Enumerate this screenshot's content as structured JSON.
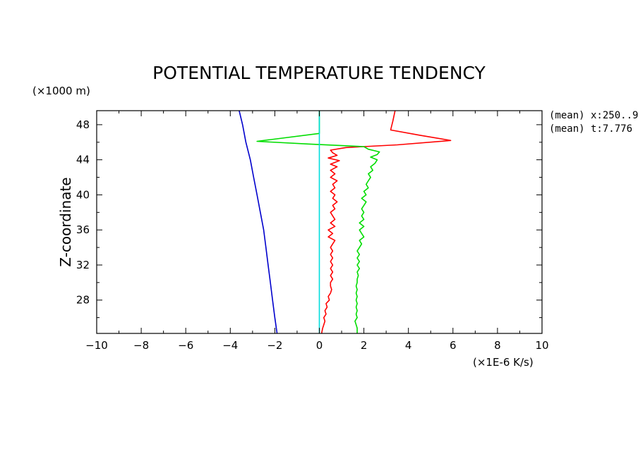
{
  "chart_data": {
    "type": "line",
    "title": "POTENTIAL TEMPERATURE TENDENCY",
    "ylabel": "Z-coordinate",
    "yunit": "(×1000 m)",
    "xunit": "(×1E-6 K/s)",
    "xlim": [
      -10,
      10
    ],
    "ylim": [
      24.2,
      49.6
    ],
    "xticks": [
      -10,
      -8,
      -6,
      -4,
      -2,
      0,
      2,
      4,
      6,
      8,
      10
    ],
    "xtick_labels": [
      "−10",
      "−8",
      "−6",
      "−4",
      "−2",
      "0",
      "2",
      "4",
      "6",
      "8",
      "10"
    ],
    "yticks": [
      28,
      32,
      36,
      40,
      44,
      48
    ],
    "ytick_labels": [
      "28",
      "32",
      "36",
      "40",
      "44",
      "48"
    ],
    "grid": false,
    "annotations": [
      "(mean) x:250..9",
      "(mean) t:7.776"
    ],
    "series": [
      {
        "color": "#0000cc",
        "points": [
          [
            -3.6,
            49.6
          ],
          [
            -3.45,
            48
          ],
          [
            -3.3,
            46
          ],
          [
            -3.1,
            44
          ],
          [
            -2.95,
            42
          ],
          [
            -2.8,
            40
          ],
          [
            -2.65,
            38
          ],
          [
            -2.5,
            36
          ],
          [
            -2.4,
            34
          ],
          [
            -2.3,
            32
          ],
          [
            -2.2,
            30
          ],
          [
            -2.1,
            28
          ],
          [
            -2.0,
            26
          ],
          [
            -1.9,
            24.2
          ]
        ]
      },
      {
        "color": "#ff0000",
        "points": [
          [
            3.4,
            49.6
          ],
          [
            3.3,
            48.4
          ],
          [
            3.2,
            47.4
          ],
          [
            4.5,
            46.8
          ],
          [
            5.9,
            46.2
          ],
          [
            3.5,
            45.7
          ],
          [
            1.2,
            45.4
          ],
          [
            0.5,
            45.1
          ],
          [
            0.6,
            44.8
          ],
          [
            0.8,
            44.5
          ],
          [
            0.4,
            44.2
          ],
          [
            0.9,
            43.9
          ],
          [
            0.5,
            43.5
          ],
          [
            0.8,
            43.2
          ],
          [
            0.5,
            42.8
          ],
          [
            0.7,
            42.4
          ],
          [
            0.5,
            42.0
          ],
          [
            0.8,
            41.6
          ],
          [
            0.6,
            41.2
          ],
          [
            0.7,
            40.8
          ],
          [
            0.5,
            40.4
          ],
          [
            0.7,
            40.0
          ],
          [
            0.6,
            39.6
          ],
          [
            0.8,
            39.2
          ],
          [
            0.6,
            38.8
          ],
          [
            0.7,
            38.4
          ],
          [
            0.5,
            38.0
          ],
          [
            0.6,
            37.6
          ],
          [
            0.7,
            37.2
          ],
          [
            0.5,
            36.8
          ],
          [
            0.7,
            36.4
          ],
          [
            0.4,
            36.0
          ],
          [
            0.6,
            35.6
          ],
          [
            0.4,
            35.2
          ],
          [
            0.7,
            34.8
          ],
          [
            0.6,
            34.4
          ],
          [
            0.5,
            34.0
          ],
          [
            0.6,
            33.6
          ],
          [
            0.5,
            33.2
          ],
          [
            0.6,
            32.8
          ],
          [
            0.5,
            32.4
          ],
          [
            0.6,
            32.0
          ],
          [
            0.5,
            31.6
          ],
          [
            0.6,
            31.2
          ],
          [
            0.5,
            30.8
          ],
          [
            0.6,
            30.4
          ],
          [
            0.5,
            30.0
          ],
          [
            0.5,
            29.6
          ],
          [
            0.55,
            29.2
          ],
          [
            0.5,
            28.8
          ],
          [
            0.4,
            28.4
          ],
          [
            0.45,
            28.0
          ],
          [
            0.3,
            27.6
          ],
          [
            0.35,
            27.2
          ],
          [
            0.25,
            26.8
          ],
          [
            0.3,
            26.4
          ],
          [
            0.2,
            26.0
          ],
          [
            0.25,
            25.6
          ],
          [
            0.2,
            25.2
          ],
          [
            0.15,
            24.8
          ],
          [
            0.1,
            24.2
          ]
        ]
      },
      {
        "color": "#00dd00",
        "points": [
          [
            0.0,
            49.6
          ],
          [
            0.0,
            48.0
          ],
          [
            0.0,
            47.0
          ],
          [
            -2.8,
            46.1
          ],
          [
            -0.5,
            45.8
          ],
          [
            2.0,
            45.5
          ],
          [
            2.2,
            45.2
          ],
          [
            2.7,
            44.9
          ],
          [
            2.6,
            44.6
          ],
          [
            2.3,
            44.3
          ],
          [
            2.6,
            44.0
          ],
          [
            2.5,
            43.6
          ],
          [
            2.3,
            43.2
          ],
          [
            2.4,
            42.8
          ],
          [
            2.2,
            42.4
          ],
          [
            2.3,
            42.0
          ],
          [
            2.2,
            41.6
          ],
          [
            2.1,
            41.2
          ],
          [
            2.2,
            40.8
          ],
          [
            2.0,
            40.4
          ],
          [
            2.1,
            40.0
          ],
          [
            1.9,
            39.6
          ],
          [
            2.1,
            39.2
          ],
          [
            2.0,
            38.8
          ],
          [
            1.9,
            38.4
          ],
          [
            2.0,
            38.0
          ],
          [
            1.9,
            37.6
          ],
          [
            2.0,
            37.2
          ],
          [
            1.8,
            36.8
          ],
          [
            2.0,
            36.4
          ],
          [
            1.8,
            36.0
          ],
          [
            1.9,
            35.6
          ],
          [
            2.0,
            35.2
          ],
          [
            1.8,
            34.8
          ],
          [
            1.9,
            34.4
          ],
          [
            1.8,
            34.0
          ],
          [
            1.7,
            33.6
          ],
          [
            1.8,
            33.2
          ],
          [
            1.7,
            32.8
          ],
          [
            1.8,
            32.4
          ],
          [
            1.7,
            32.0
          ],
          [
            1.8,
            31.6
          ],
          [
            1.7,
            31.2
          ],
          [
            1.75,
            30.8
          ],
          [
            1.7,
            30.4
          ],
          [
            1.7,
            30.0
          ],
          [
            1.65,
            29.6
          ],
          [
            1.7,
            29.2
          ],
          [
            1.65,
            28.8
          ],
          [
            1.7,
            28.4
          ],
          [
            1.65,
            28.0
          ],
          [
            1.7,
            27.6
          ],
          [
            1.65,
            27.2
          ],
          [
            1.7,
            26.8
          ],
          [
            1.65,
            26.4
          ],
          [
            1.7,
            26.0
          ],
          [
            1.6,
            25.6
          ],
          [
            1.65,
            25.2
          ],
          [
            1.7,
            24.8
          ],
          [
            1.7,
            24.2
          ]
        ]
      },
      {
        "color": "#00dddd",
        "points": [
          [
            0.0,
            49.6
          ],
          [
            0.0,
            24.2
          ]
        ]
      }
    ]
  }
}
